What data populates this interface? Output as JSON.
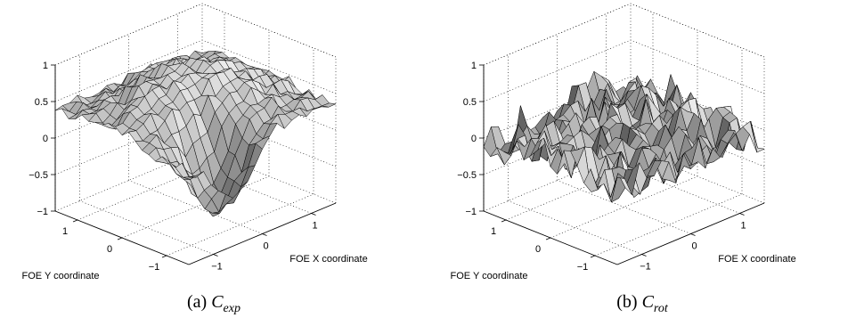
{
  "chart_data": [
    {
      "type": "surface",
      "xlabel": "FOE X coordinate",
      "ylabel": "FOE Y coordinate",
      "zlabel": "",
      "x_ticks": [
        "−1",
        "0",
        "1"
      ],
      "y_ticks": [
        "−1",
        "0",
        "1"
      ],
      "z_ticks": [
        "−1",
        "−0.5",
        "0",
        "0.5",
        "1"
      ],
      "xlim": [
        -1.5,
        1.5
      ],
      "ylim": [
        -1.5,
        1.5
      ],
      "zlim": [
        -1,
        1
      ],
      "grid": true,
      "grid_size": 21,
      "surface_description": "broad plateau near 0.8 at center of FOE grid, falling to about 0.3-0.4 at edges, with a deep dip to about -0.8 near the front corner",
      "peak_value": 0.85,
      "edge_value": 0.35,
      "min_value": -0.8,
      "caption_prefix": "(a)",
      "caption_symbol": "C",
      "caption_subscript": "exp"
    },
    {
      "type": "surface",
      "xlabel": "FOE X coordinate",
      "ylabel": "FOE Y coordinate",
      "zlabel": "",
      "x_ticks": [
        "−1",
        "0",
        "1"
      ],
      "y_ticks": [
        "−1",
        "0",
        "1"
      ],
      "z_ticks": [
        "−1",
        "−0.5",
        "0",
        "0.5",
        "1"
      ],
      "xlim": [
        -1.5,
        1.5
      ],
      "ylim": [
        -1.5,
        1.5
      ],
      "zlim": [
        -1,
        1
      ],
      "grid": true,
      "grid_size": 21,
      "surface_description": "noisy surface fluctuating around 0 (range about -0.5 to 0.4) with no clear peak",
      "peak_value": 0.35,
      "edge_value": 0.0,
      "min_value": -0.6,
      "caption_prefix": "(b)",
      "caption_symbol": "C",
      "caption_subscript": "rot"
    }
  ]
}
